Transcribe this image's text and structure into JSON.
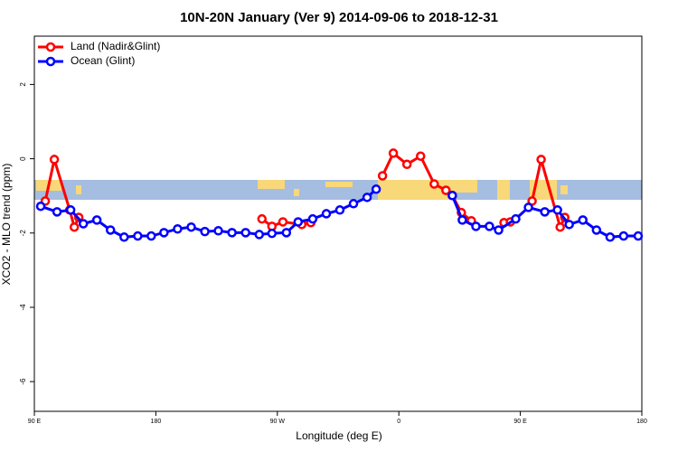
{
  "chart_data": {
    "type": "line",
    "title": "10N-20N January (Ver 9)   2014-09-06 to 2018-12-31",
    "x_label": "Longitude (deg E)",
    "y_label": "XCO2 - MLO trend (ppm)",
    "xlim": [
      90,
      540
    ],
    "ylim": [
      -6.8,
      3.3
    ],
    "xticks": [
      {
        "value": 90,
        "label": "90 E"
      },
      180,
      {
        "value": 270,
        "label": "90 W"
      },
      {
        "value": 360,
        "label": "0"
      },
      {
        "value": 450,
        "label": "90 E"
      },
      {
        "value": 540,
        "label": "180"
      }
    ],
    "yticks": [
      -6,
      -4,
      -2,
      0,
      2
    ],
    "legend": "top-left",
    "series": [
      {
        "name": "Land (Nadir&Glint)",
        "color": "#ff0000",
        "x": [
          98.1,
          104.8,
          116.2,
          119.6,
          122.9,
          null,
          258.6,
          266.0,
          274.1,
          288.1,
          294.8,
          null,
          347.9,
          355.9,
          366.0,
          376.1,
          386.2,
          394.9,
          399.6,
          406.3,
          413.7,
          null,
          437.9,
          442.6,
          null,
          458.7,
          465.4,
          479.5,
          482.9
        ],
        "values": [
          -1.14,
          -0.02,
          -1.38,
          -1.84,
          -1.58,
          null,
          -1.62,
          -1.82,
          -1.7,
          -1.77,
          -1.72,
          null,
          -0.46,
          0.15,
          -0.15,
          0.07,
          -0.68,
          -0.85,
          -0.99,
          -1.45,
          -1.67,
          null,
          -1.72,
          -1.7,
          null,
          -1.14,
          -0.02,
          -1.84,
          -1.58
        ]
      },
      {
        "name": "Ocean (Glint)",
        "color": "#0000ff",
        "x": [
          94.7,
          106.8,
          116.9,
          126.3,
          136.3,
          146.4,
          156.5,
          166.6,
          176.6,
          186.0,
          196.1,
          206.2,
          216.3,
          226.3,
          236.4,
          246.5,
          256.6,
          266.0,
          276.7,
          285.4,
          296.2,
          306.3,
          316.3,
          326.4,
          336.5,
          343.2,
          null,
          399.6,
          407.0,
          417.1,
          427.1,
          433.9,
          446.6,
          456.0,
          468.1,
          477.5,
          486.2,
          496.3,
          506.4,
          516.5,
          526.5,
          537.3
        ],
        "values": [
          -1.28,
          -1.43,
          -1.38,
          -1.75,
          -1.65,
          -1.92,
          -2.11,
          -2.08,
          -2.08,
          -1.99,
          -1.89,
          -1.84,
          -1.96,
          -1.94,
          -1.99,
          -1.99,
          -2.04,
          -2.01,
          -1.99,
          -1.7,
          -1.62,
          -1.48,
          -1.38,
          -1.21,
          -1.04,
          -0.82,
          null,
          -0.99,
          -1.65,
          -1.82,
          -1.82,
          -1.92,
          -1.62,
          -1.31,
          -1.43,
          -1.38,
          -1.77,
          -1.65,
          -1.92,
          -2.11,
          -2.08,
          -2.08
        ]
      }
    ]
  }
}
